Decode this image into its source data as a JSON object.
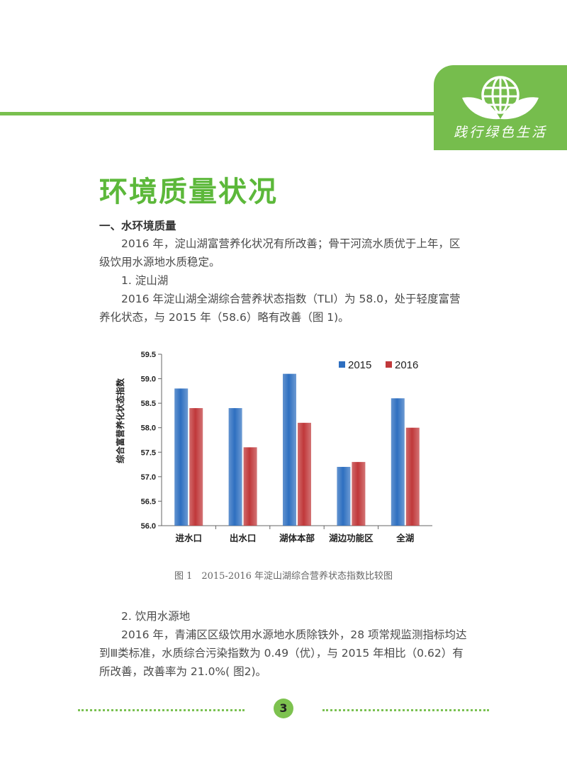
{
  "header": {
    "badge_text": "践行绿色生活"
  },
  "page_title": "环境质量状况",
  "section1": {
    "heading": "一、水环境质量"
  },
  "paragraphs": {
    "p1": "2016 年，淀山湖富营养化状况有所改善；骨干河流水质优于上年，区级饮用水源地水质稳定。",
    "sub1": "1. 淀山湖",
    "p2": "2016 年淀山湖全湖综合营养状态指数（TLI）为 58.0，处于轻度富营养化状态，与 2015 年（58.6）略有改善（图 1)。",
    "sub2": "2. 饮用水源地",
    "p3": "2016 年，青浦区区级饮用水源地水质除铁外，28 项常规监测指标均达到Ⅲ类标准，水质综合污染指数为 0.49（优），与 2015 年相比（0.62）有所改善，改善率为 21.0%( 图2)。"
  },
  "chart_data": {
    "type": "bar",
    "title": "",
    "xlabel": "",
    "ylabel": "综合富营养化状态指数",
    "categories": [
      "进水口",
      "出水口",
      "湖体本部",
      "湖边功能区",
      "全湖"
    ],
    "series": [
      {
        "name": "2015",
        "values": [
          58.8,
          58.4,
          59.1,
          57.2,
          58.6
        ],
        "color": "#2e6fc0"
      },
      {
        "name": "2016",
        "values": [
          58.4,
          57.6,
          58.1,
          57.3,
          58.0
        ],
        "color": "#c0383a"
      }
    ],
    "ylim": [
      56.0,
      59.5
    ],
    "yticks": [
      "59.5",
      "59.0",
      "58.5",
      "58.0",
      "57.5",
      "57.0",
      "56.5",
      "56.0"
    ],
    "legend": "top-right",
    "grid": false
  },
  "figure_caption": "图 1　2015-2016 年淀山湖综合营养状态指数比较图",
  "footer": {
    "page_number": "3"
  }
}
